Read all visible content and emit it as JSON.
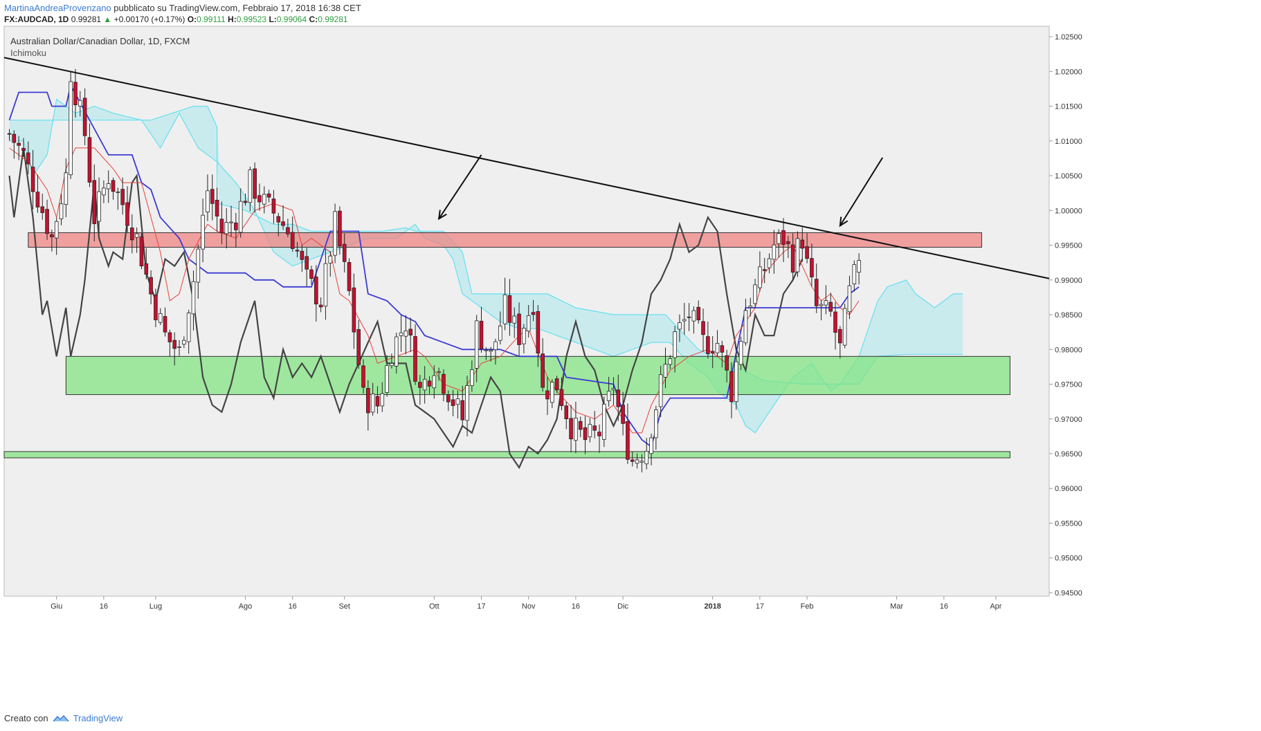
{
  "header": {
    "author": "MartinaAndreaProvenzano",
    "published": "pubblicato su TradingView.com, Febbraio 17, 2018 16:38 CET",
    "symbol": "FX:AUDCAD, 1D",
    "last": "0.99281",
    "change": "+0.00170 (+0.17%)",
    "open_label": "O:",
    "open": "0.99111",
    "high_label": "H:",
    "high": "0.99523",
    "low_label": "L:",
    "low": "0.99064",
    "close_label": "C:",
    "close": "0.99281"
  },
  "footer": {
    "created_with": "Creato con",
    "brand": "TradingView",
    "brand_icon": "tradingview-logo-icon"
  },
  "colors": {
    "bull": "#ffffff",
    "bear": "#c8102e",
    "resistance": "#f08080",
    "support": "#7fe37f",
    "cloud": "#bde9ee",
    "tenkan": "#e8403a",
    "kijun": "#3a3ad4",
    "chikou": "#444444",
    "span": "#66e0ef"
  },
  "chart_data": {
    "type": "candlestick",
    "title": "Australian Dollar/Canadian Dollar, 1D, FXCM",
    "indicator": "Ichimoku",
    "ylim": [
      0.9445,
      1.0265
    ],
    "y_ticks": [
      "1.02500",
      "1.02000",
      "1.01500",
      "1.01000",
      "1.00500",
      "1.00000",
      "0.99500",
      "0.99000",
      "0.98500",
      "0.98000",
      "0.97500",
      "0.97000",
      "0.96500",
      "0.96000",
      "0.95500",
      "0.95000",
      "0.94500"
    ],
    "x_ticks": [
      {
        "label": "Giu",
        "bar": 10
      },
      {
        "label": "16",
        "bar": 20
      },
      {
        "label": "Lug",
        "bar": 31
      },
      {
        "label": "Ago",
        "bar": 50
      },
      {
        "label": "16",
        "bar": 60
      },
      {
        "label": "Set",
        "bar": 71
      },
      {
        "label": "Ott",
        "bar": 90
      },
      {
        "label": "17",
        "bar": 100
      },
      {
        "label": "Nov",
        "bar": 110
      },
      {
        "label": "16",
        "bar": 120
      },
      {
        "label": "Dic",
        "bar": 130
      },
      {
        "label": "2018",
        "bar": 149,
        "bold": true
      },
      {
        "label": "17",
        "bar": 159
      },
      {
        "label": "Feb",
        "bar": 169
      },
      {
        "label": "Mar",
        "bar": 188
      },
      {
        "label": "16",
        "bar": 198
      },
      {
        "label": "Apr",
        "bar": 209
      }
    ],
    "anchors": [
      [
        0,
        1.011
      ],
      [
        3,
        1.008
      ],
      [
        6,
        1.002
      ],
      [
        9,
        0.996
      ],
      [
        12,
        1.005
      ],
      [
        13,
        1.02
      ],
      [
        16,
        1.011
      ],
      [
        18,
        0.999
      ],
      [
        21,
        1.005
      ],
      [
        24,
        1.001
      ],
      [
        27,
        0.996
      ],
      [
        30,
        0.988
      ],
      [
        33,
        0.982
      ],
      [
        36,
        0.9795
      ],
      [
        39,
        0.99
      ],
      [
        42,
        1.003
      ],
      [
        45,
        0.997
      ],
      [
        48,
        0.999
      ],
      [
        51,
        1.004
      ],
      [
        54,
        1.001
      ],
      [
        57,
        0.999
      ],
      [
        60,
        0.996
      ],
      [
        63,
        0.99
      ],
      [
        66,
        0.987
      ],
      [
        69,
        0.998
      ],
      [
        72,
        0.988
      ],
      [
        75,
        0.973
      ],
      [
        78,
        0.972
      ],
      [
        81,
        0.98
      ],
      [
        84,
        0.984
      ],
      [
        87,
        0.974
      ],
      [
        90,
        0.978
      ],
      [
        93,
        0.974
      ],
      [
        96,
        0.97
      ],
      [
        99,
        0.983
      ],
      [
        102,
        0.979
      ],
      [
        105,
        0.986
      ],
      [
        108,
        0.982
      ],
      [
        111,
        0.987
      ],
      [
        113,
        0.974
      ],
      [
        116,
        0.975
      ],
      [
        119,
        0.969
      ],
      [
        122,
        0.967
      ],
      [
        125,
        0.968
      ],
      [
        128,
        0.975
      ],
      [
        130,
        0.968
      ],
      [
        132,
        0.964
      ],
      [
        135,
        0.966
      ],
      [
        138,
        0.975
      ],
      [
        141,
        0.982
      ],
      [
        144,
        0.985
      ],
      [
        147,
        0.981
      ],
      [
        150,
        0.981
      ],
      [
        153,
        0.974
      ],
      [
        156,
        0.986
      ],
      [
        159,
        0.99
      ],
      [
        162,
        0.995
      ],
      [
        164,
        0.996
      ],
      [
        166,
        0.993
      ],
      [
        168,
        0.996
      ],
      [
        169,
        0.992
      ],
      [
        171,
        0.986
      ],
      [
        174,
        0.985
      ],
      [
        176,
        0.98
      ],
      [
        178,
        0.988
      ],
      [
        180,
        0.9928
      ]
    ],
    "cloud_b": [
      [
        0,
        1.013
      ],
      [
        12,
        1.013
      ],
      [
        30,
        1.013
      ],
      [
        39,
        1.015
      ],
      [
        42,
        1.015
      ],
      [
        44,
        1.012
      ],
      [
        44,
        1.001
      ],
      [
        50,
        1.0
      ],
      [
        56,
        0.998
      ],
      [
        60,
        0.998
      ],
      [
        64,
        0.997
      ],
      [
        70,
        0.997
      ],
      [
        79,
        0.997
      ],
      [
        84,
        0.9975
      ],
      [
        86,
        0.997
      ],
      [
        92,
        0.997
      ],
      [
        96,
        0.994
      ],
      [
        98,
        0.988
      ],
      [
        114,
        0.988
      ],
      [
        120,
        0.986
      ],
      [
        128,
        0.985
      ],
      [
        139,
        0.985
      ],
      [
        146,
        0.98
      ],
      [
        160,
        0.9755
      ],
      [
        168,
        0.975
      ],
      [
        180,
        0.975
      ],
      [
        184,
        0.979
      ],
      [
        190,
        0.9793
      ],
      [
        202,
        0.9793
      ]
    ],
    "cloud_a": [
      [
        0,
        1.01
      ],
      [
        3,
        1.01
      ],
      [
        5,
        1.005
      ],
      [
        8,
        1.008
      ],
      [
        10,
        1.016
      ],
      [
        14,
        1.014
      ],
      [
        18,
        1.015
      ],
      [
        22,
        1.014
      ],
      [
        28,
        1.013
      ],
      [
        32,
        1.009
      ],
      [
        36,
        1.014
      ],
      [
        40,
        1.009
      ],
      [
        44,
        1.007
      ],
      [
        48,
        1.004
      ],
      [
        52,
        1.0
      ],
      [
        56,
        0.994
      ],
      [
        60,
        0.992
      ],
      [
        64,
        0.993
      ],
      [
        68,
        0.994
      ],
      [
        72,
        0.995
      ],
      [
        76,
        0.996
      ],
      [
        82,
        0.996
      ],
      [
        86,
        0.998
      ],
      [
        88,
        0.996
      ],
      [
        92,
        0.995
      ],
      [
        94,
        0.993
      ],
      [
        96,
        0.988
      ],
      [
        100,
        0.986
      ],
      [
        104,
        0.984
      ],
      [
        108,
        0.983
      ],
      [
        112,
        0.983
      ],
      [
        116,
        0.982
      ],
      [
        120,
        0.981
      ],
      [
        124,
        0.98
      ],
      [
        128,
        0.979
      ],
      [
        132,
        0.98
      ],
      [
        136,
        0.981
      ],
      [
        140,
        0.981
      ],
      [
        144,
        0.978
      ],
      [
        148,
        0.976
      ],
      [
        150,
        0.974
      ],
      [
        154,
        0.972
      ],
      [
        156,
        0.969
      ],
      [
        158,
        0.968
      ],
      [
        160,
        0.97
      ],
      [
        164,
        0.974
      ],
      [
        166,
        0.976
      ],
      [
        170,
        0.978
      ],
      [
        172,
        0.976
      ],
      [
        174,
        0.974
      ],
      [
        176,
        0.975
      ],
      [
        178,
        0.977
      ],
      [
        180,
        0.979
      ],
      [
        182,
        0.983
      ],
      [
        184,
        0.987
      ],
      [
        186,
        0.989
      ],
      [
        190,
        0.99
      ],
      [
        192,
        0.988
      ],
      [
        196,
        0.986
      ],
      [
        198,
        0.987
      ],
      [
        200,
        0.988
      ],
      [
        202,
        0.988
      ]
    ],
    "kijun": [
      [
        0,
        1.013
      ],
      [
        2,
        1.017
      ],
      [
        8,
        1.017
      ],
      [
        9,
        1.015
      ],
      [
        12,
        1.015
      ],
      [
        13,
        1.018
      ],
      [
        21,
        1.008
      ],
      [
        26,
        1.008
      ],
      [
        28,
        1.004
      ],
      [
        30,
        1.003
      ],
      [
        32,
        0.999
      ],
      [
        36,
        0.996
      ],
      [
        38,
        0.993
      ],
      [
        42,
        0.991
      ],
      [
        50,
        0.991
      ],
      [
        52,
        0.99
      ],
      [
        56,
        0.99
      ],
      [
        58,
        0.989
      ],
      [
        64,
        0.989
      ],
      [
        68,
        0.997
      ],
      [
        74,
        0.997
      ],
      [
        76,
        0.988
      ],
      [
        80,
        0.987
      ],
      [
        83,
        0.985
      ],
      [
        86,
        0.984
      ],
      [
        88,
        0.982
      ],
      [
        96,
        0.98
      ],
      [
        104,
        0.98
      ],
      [
        108,
        0.979
      ],
      [
        116,
        0.979
      ],
      [
        118,
        0.976
      ],
      [
        128,
        0.975
      ],
      [
        130,
        0.971
      ],
      [
        134,
        0.967
      ],
      [
        136,
        0.966
      ],
      [
        138,
        0.971
      ],
      [
        140,
        0.973
      ],
      [
        152,
        0.973
      ],
      [
        156,
        0.986
      ],
      [
        166,
        0.986
      ],
      [
        170,
        0.986
      ],
      [
        176,
        0.986
      ],
      [
        178,
        0.988
      ],
      [
        180,
        0.989
      ]
    ],
    "tenkan": [
      [
        0,
        1.009
      ],
      [
        4,
        1.007
      ],
      [
        8,
        1.003
      ],
      [
        10,
        0.999
      ],
      [
        12,
        1.006
      ],
      [
        14,
        1.009
      ],
      [
        18,
        1.009
      ],
      [
        22,
        1.006
      ],
      [
        24,
        1.004
      ],
      [
        28,
        1.004
      ],
      [
        30,
        0.999
      ],
      [
        32,
        0.994
      ],
      [
        34,
        0.987
      ],
      [
        36,
        0.988
      ],
      [
        38,
        0.993
      ],
      [
        42,
        0.998
      ],
      [
        44,
        0.997
      ],
      [
        48,
        0.996
      ],
      [
        52,
        1.0
      ],
      [
        56,
        1.001
      ],
      [
        60,
        1.0
      ],
      [
        62,
        0.995
      ],
      [
        64,
        0.996
      ],
      [
        68,
        0.994
      ],
      [
        70,
        0.988
      ],
      [
        72,
        0.987
      ],
      [
        76,
        0.982
      ],
      [
        78,
        0.978
      ],
      [
        82,
        0.979
      ],
      [
        86,
        0.98
      ],
      [
        88,
        0.979
      ],
      [
        92,
        0.975
      ],
      [
        96,
        0.974
      ],
      [
        100,
        0.978
      ],
      [
        104,
        0.979
      ],
      [
        108,
        0.982
      ],
      [
        110,
        0.983
      ],
      [
        114,
        0.976
      ],
      [
        116,
        0.974
      ],
      [
        120,
        0.971
      ],
      [
        124,
        0.97
      ],
      [
        128,
        0.972
      ],
      [
        130,
        0.97
      ],
      [
        132,
        0.968
      ],
      [
        134,
        0.968
      ],
      [
        136,
        0.972
      ],
      [
        140,
        0.977
      ],
      [
        144,
        0.979
      ],
      [
        148,
        0.98
      ],
      [
        150,
        0.979
      ],
      [
        152,
        0.978
      ],
      [
        154,
        0.982
      ],
      [
        158,
        0.986
      ],
      [
        160,
        0.991
      ],
      [
        164,
        0.994
      ],
      [
        166,
        0.995
      ],
      [
        168,
        0.992
      ],
      [
        170,
        0.989
      ],
      [
        172,
        0.987
      ],
      [
        174,
        0.988
      ],
      [
        176,
        0.986
      ],
      [
        178,
        0.985
      ],
      [
        180,
        0.987
      ]
    ],
    "chikou": [
      [
        0,
        1.005
      ],
      [
        1,
        0.999
      ],
      [
        3,
        1.009
      ],
      [
        5,
        0.999
      ],
      [
        7,
        0.985
      ],
      [
        8,
        0.987
      ],
      [
        10,
        0.979
      ],
      [
        12,
        0.986
      ],
      [
        13,
        0.979
      ],
      [
        15,
        0.985
      ],
      [
        16,
        0.99
      ],
      [
        18,
        1.004
      ],
      [
        19,
        0.996
      ],
      [
        21,
        0.992
      ],
      [
        22,
        0.994
      ],
      [
        24,
        0.993
      ],
      [
        26,
        1.004
      ],
      [
        27,
        1.005
      ],
      [
        29,
        0.991
      ],
      [
        31,
        0.987
      ],
      [
        33,
        0.993
      ],
      [
        35,
        0.992
      ],
      [
        37,
        0.994
      ],
      [
        39,
        0.987
      ],
      [
        41,
        0.976
      ],
      [
        43,
        0.972
      ],
      [
        45,
        0.971
      ],
      [
        47,
        0.975
      ],
      [
        49,
        0.981
      ],
      [
        50,
        0.983
      ],
      [
        52,
        0.987
      ],
      [
        54,
        0.976
      ],
      [
        56,
        0.973
      ],
      [
        58,
        0.98
      ],
      [
        60,
        0.976
      ],
      [
        62,
        0.978
      ],
      [
        64,
        0.976
      ],
      [
        66,
        0.979
      ],
      [
        68,
        0.975
      ],
      [
        70,
        0.971
      ],
      [
        72,
        0.975
      ],
      [
        74,
        0.978
      ],
      [
        76,
        0.981
      ],
      [
        78,
        0.984
      ],
      [
        80,
        0.978
      ],
      [
        82,
        0.978
      ],
      [
        84,
        0.978
      ],
      [
        86,
        0.972
      ],
      [
        88,
        0.971
      ],
      [
        90,
        0.97
      ],
      [
        92,
        0.968
      ],
      [
        94,
        0.966
      ],
      [
        96,
        0.969
      ],
      [
        98,
        0.968
      ],
      [
        100,
        0.972
      ],
      [
        102,
        0.976
      ],
      [
        104,
        0.974
      ],
      [
        106,
        0.965
      ],
      [
        108,
        0.963
      ],
      [
        110,
        0.966
      ],
      [
        112,
        0.965
      ],
      [
        114,
        0.967
      ],
      [
        116,
        0.97
      ],
      [
        118,
        0.979
      ],
      [
        120,
        0.984
      ],
      [
        122,
        0.979
      ],
      [
        124,
        0.977
      ],
      [
        126,
        0.972
      ],
      [
        128,
        0.969
      ],
      [
        130,
        0.972
      ],
      [
        132,
        0.977
      ],
      [
        134,
        0.981
      ],
      [
        136,
        0.988
      ],
      [
        138,
        0.99
      ],
      [
        140,
        0.993
      ],
      [
        142,
        0.998
      ],
      [
        144,
        0.994
      ],
      [
        146,
        0.995
      ],
      [
        148,
        0.999
      ],
      [
        150,
        0.997
      ],
      [
        152,
        0.988
      ],
      [
        154,
        0.98
      ],
      [
        156,
        0.977
      ],
      [
        158,
        0.985
      ],
      [
        160,
        0.982
      ],
      [
        162,
        0.982
      ],
      [
        164,
        0.988
      ],
      [
        166,
        0.99
      ],
      [
        168,
        0.993
      ]
    ],
    "zones": [
      {
        "name": "resistance",
        "bar0": 4,
        "bar1": 206,
        "y0": 0.9947,
        "y1": 0.9968
      },
      {
        "name": "support",
        "bar0": 12,
        "bar1": 212,
        "y0": 0.9735,
        "y1": 0.979
      },
      {
        "name": "support-low",
        "bar0": 0,
        "bar1": 212,
        "y0": 0.9644,
        "y1": 0.9653
      }
    ],
    "trendline": {
      "x0": 0,
      "y0": 1.022,
      "x1": 212,
      "y1": 0.9902
    },
    "arrows": [
      {
        "from": [
          100,
          1.008
        ],
        "to": [
          91,
          0.9988
        ]
      },
      {
        "from": [
          185,
          1.0076
        ],
        "to": [
          176,
          0.9978
        ]
      }
    ]
  }
}
